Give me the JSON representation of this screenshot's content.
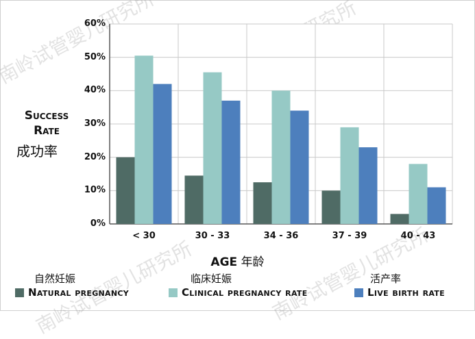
{
  "chart_data": {
    "type": "bar",
    "categories": [
      "< 30",
      "30 - 33",
      "34 - 36",
      "37 - 39",
      "40 - 43"
    ],
    "series": [
      {
        "name": "Natural pregnancy",
        "name_zh": "自然妊娠",
        "color": "#4f6b65",
        "values": [
          20,
          14.5,
          12.5,
          10,
          3
        ]
      },
      {
        "name": "Clinical pregnancy rate",
        "name_zh": "临床妊娠",
        "color": "#96c9c5",
        "values": [
          50.5,
          45.5,
          40,
          29,
          18
        ]
      },
      {
        "name": "Live birth rate",
        "name_zh": "活产率",
        "color": "#4d7fbd",
        "values": [
          42,
          37,
          34,
          23,
          11
        ]
      }
    ],
    "y_ticks": [
      "0%",
      "10%",
      "20%",
      "30%",
      "40%",
      "50%",
      "60%"
    ],
    "ylim": [
      0,
      60
    ],
    "ylabel": "Success Rate",
    "ylabel_zh": "成功率",
    "xlabel": "AGE",
    "xlabel_zh": "年龄",
    "grid": true,
    "legend_position": "bottom"
  },
  "watermark": "南岭试管婴儿研究所"
}
